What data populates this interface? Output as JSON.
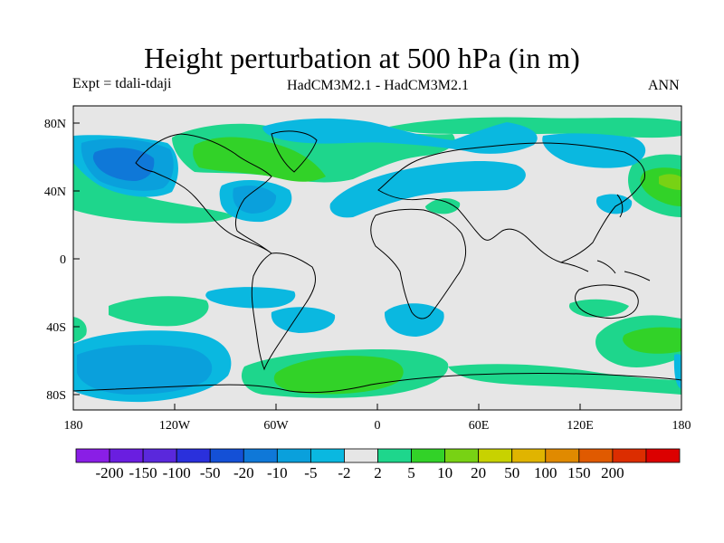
{
  "title": "Height perturbation at 500 hPa (in m)",
  "subtitle_left": "Expt = tdali-tdaji",
  "subtitle_center": "HadCM3M2.1 - HadCM3M2.1",
  "subtitle_right": "ANN",
  "axes": {
    "lat_ticks": [
      "80N",
      "40N",
      "0",
      "40S",
      "80S"
    ],
    "lon_ticks": [
      "180",
      "120W",
      "60W",
      "0",
      "60E",
      "120E",
      "180"
    ]
  },
  "colorbar": {
    "labels": [
      "-200",
      "-150",
      "-100",
      "-50",
      "-20",
      "-10",
      "-5",
      "-2",
      "2",
      "5",
      "10",
      "20",
      "50",
      "100",
      "150",
      "200"
    ],
    "colors": [
      "#8a1ee6",
      "#6a1ee0",
      "#5a28dc",
      "#2a30dc",
      "#1450d6",
      "#0f78d8",
      "#0aa0dc",
      "#0ab8e0",
      "#e6e6e6",
      "#1ed68c",
      "#32d228",
      "#78d214",
      "#c8d200",
      "#e0b400",
      "#e08a00",
      "#e05a00",
      "#dc2d00",
      "#dc0000"
    ]
  },
  "colors": {
    "background_field": "#e6e6e6",
    "coastline": "#000000"
  }
}
